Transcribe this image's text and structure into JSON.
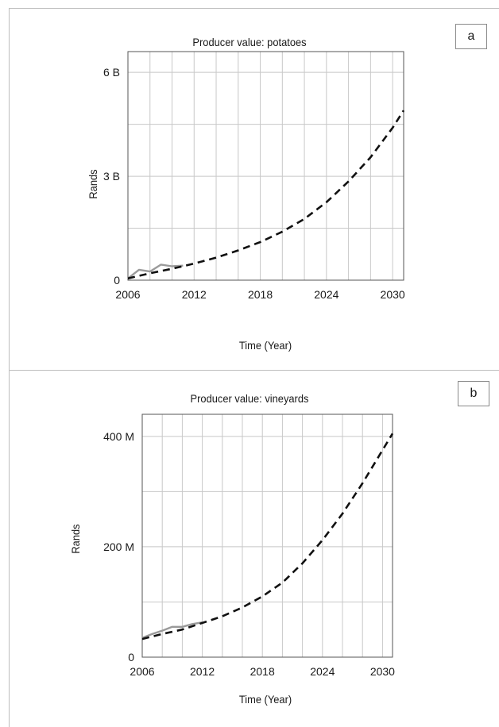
{
  "chart_data": [
    {
      "type": "line",
      "panel_label": "a",
      "title": "Producer value: potatoes",
      "xlabel": "Time (Year)",
      "ylabel": "Rands",
      "xlim": [
        2006,
        2031
      ],
      "ylim": [
        0,
        6.6
      ],
      "x_ticks": [
        2006,
        2012,
        2018,
        2024,
        2030
      ],
      "x_tick_labels": [
        "2006",
        "2012",
        "2018",
        "2024",
        "2030"
      ],
      "y_ticks": [
        0,
        3,
        6
      ],
      "y_tick_labels": [
        "0",
        "3 B",
        "6 B"
      ],
      "grid": true,
      "series": [
        {
          "style": "solid",
          "color": "#9a9a9a",
          "x": [
            2006,
            2007,
            2008,
            2009,
            2010,
            2011
          ],
          "y": [
            0.05,
            0.3,
            0.25,
            0.45,
            0.4,
            0.42
          ]
        },
        {
          "style": "dashed",
          "color": "#111111",
          "x": [
            2006,
            2008,
            2010,
            2012,
            2014,
            2016,
            2018,
            2020,
            2022,
            2024,
            2026,
            2028,
            2030,
            2031
          ],
          "y": [
            0.05,
            0.2,
            0.33,
            0.48,
            0.65,
            0.86,
            1.1,
            1.4,
            1.77,
            2.25,
            2.85,
            3.55,
            4.4,
            4.9
          ]
        }
      ]
    },
    {
      "type": "line",
      "panel_label": "b",
      "title": "Producer value: vineyards",
      "xlabel": "Time (Year)",
      "ylabel": "Rands",
      "xlim": [
        2006,
        2031
      ],
      "ylim": [
        0,
        440
      ],
      "x_ticks": [
        2006,
        2012,
        2018,
        2024,
        2030
      ],
      "x_tick_labels": [
        "2006",
        "2012",
        "2018",
        "2024",
        "2030"
      ],
      "y_ticks": [
        0,
        200,
        400
      ],
      "y_tick_labels": [
        "0",
        "200 M",
        "400 M"
      ],
      "grid": true,
      "series": [
        {
          "style": "solid",
          "color": "#9a9a9a",
          "x": [
            2006,
            2007,
            2008,
            2009,
            2010,
            2011,
            2012
          ],
          "y": [
            35,
            42,
            48,
            55,
            55,
            60,
            63
          ]
        },
        {
          "style": "dashed",
          "color": "#111111",
          "x": [
            2006,
            2008,
            2010,
            2012,
            2014,
            2016,
            2018,
            2020,
            2022,
            2024,
            2026,
            2028,
            2030,
            2031
          ],
          "y": [
            33,
            42,
            50,
            62,
            74,
            90,
            110,
            135,
            170,
            212,
            260,
            315,
            375,
            405
          ]
        }
      ]
    }
  ]
}
